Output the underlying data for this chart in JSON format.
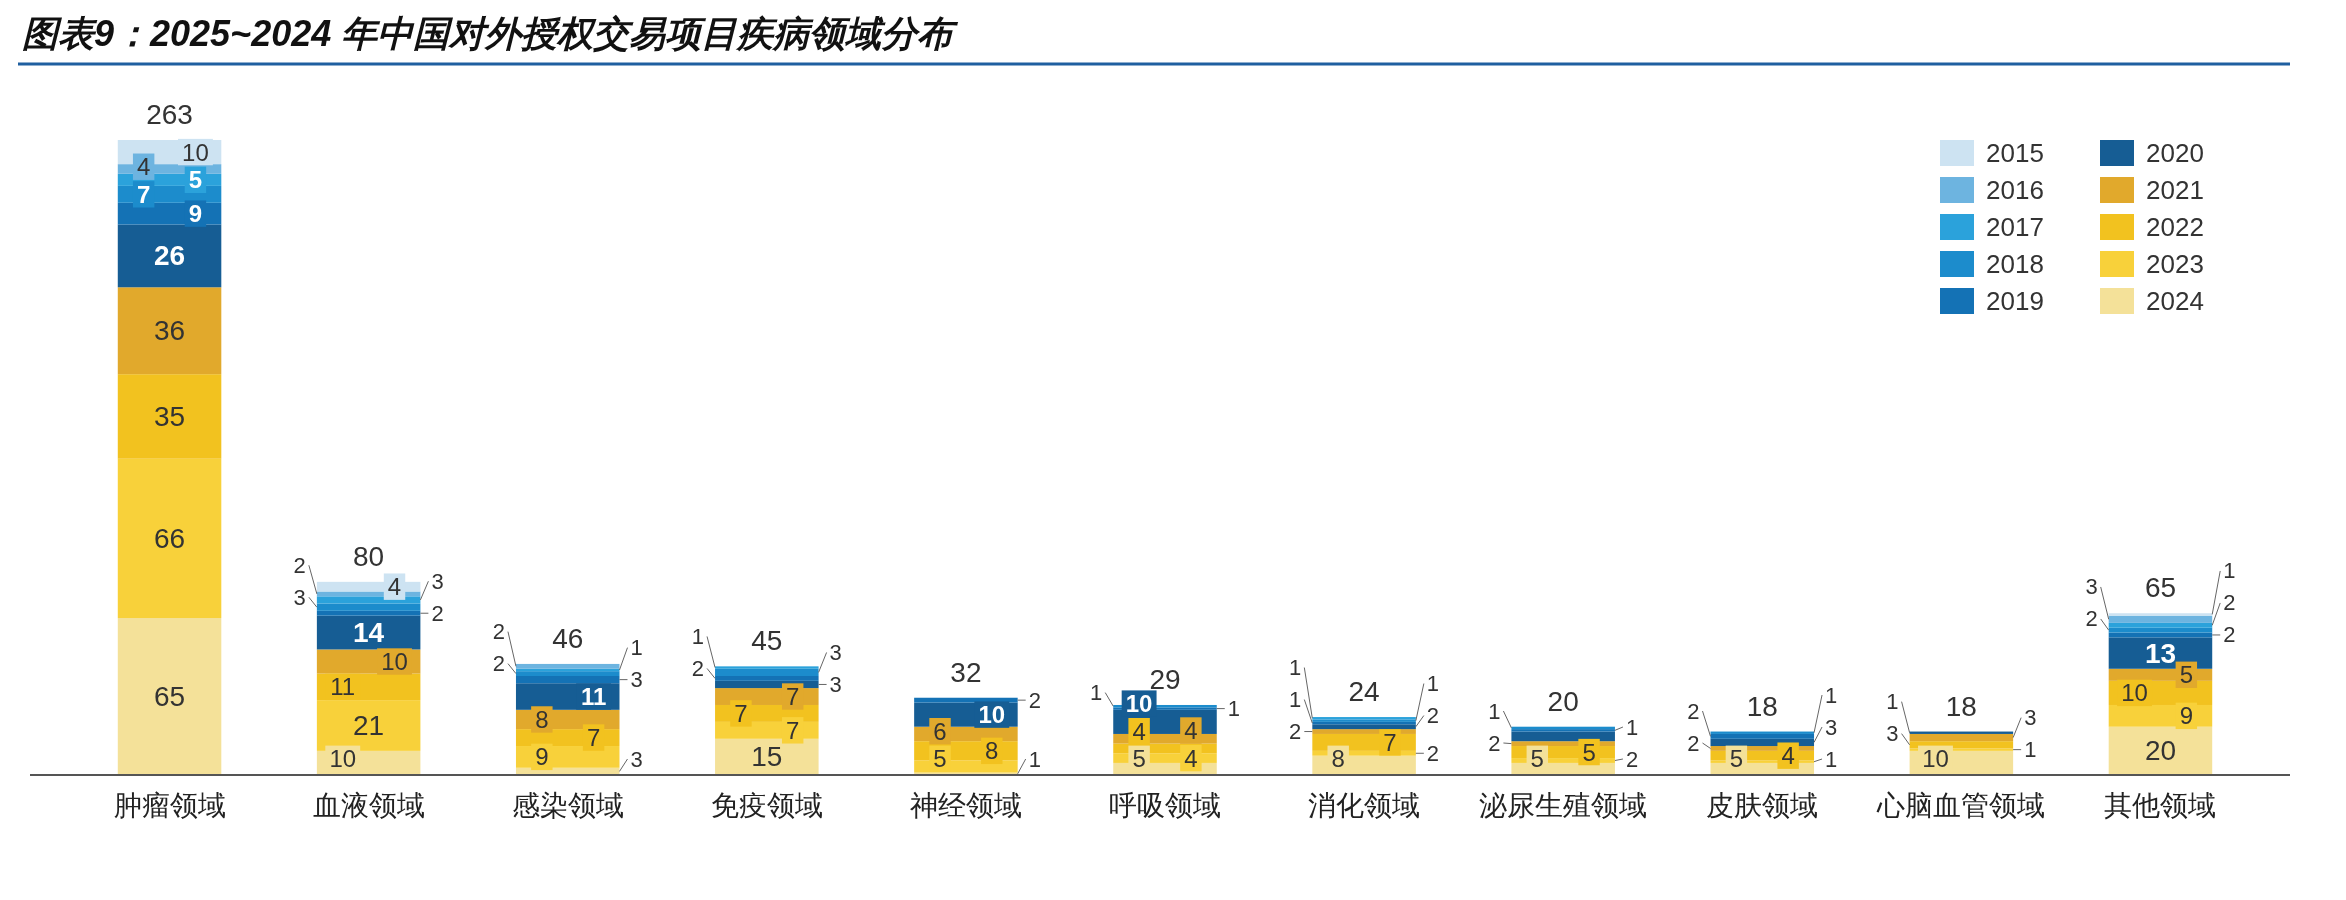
{
  "chart_data": {
    "type": "bar",
    "stacked": true,
    "title": "图表9：2025~2024 年中国对外授权交易项目疾病领域分布",
    "categories": [
      "肿瘤领域",
      "血液领域",
      "感染领域",
      "免疫领域",
      "神经领域",
      "呼吸领域",
      "消化领域",
      "泌尿生殖领域",
      "皮肤领域",
      "心脑血管领域",
      "其他领域"
    ],
    "series": [
      {
        "name": "2024",
        "color": "#f4e199",
        "values": [
          65,
          10,
          3,
          15,
          1,
          5,
          8,
          5,
          5,
          10,
          20
        ]
      },
      {
        "name": "2023",
        "color": "#f8d13a",
        "values": [
          66,
          21,
          9,
          7,
          5,
          4,
          2,
          2,
          1,
          1,
          9
        ]
      },
      {
        "name": "2022",
        "color": "#f2c21f",
        "values": [
          35,
          11,
          7,
          7,
          8,
          4,
          7,
          5,
          4,
          3,
          10
        ]
      },
      {
        "name": "2021",
        "color": "#e1a92c",
        "values": [
          36,
          10,
          8,
          7,
          6,
          4,
          2,
          2,
          2,
          3,
          5
        ]
      },
      {
        "name": "2020",
        "color": "#165d94",
        "values": [
          26,
          14,
          11,
          3,
          10,
          10,
          2,
          4,
          3,
          1,
          13
        ],
        "value_labels": [
          "26",
          "14",
          "11",
          "3",
          "10",
          "10",
          "2",
          null,
          "3",
          "1",
          "13"
        ]
      },
      {
        "name": "2019",
        "color": "#1472b5",
        "values": [
          9,
          2,
          3,
          2,
          2,
          1,
          1,
          1,
          2,
          null,
          2
        ]
      },
      {
        "name": "2018",
        "color": "#1c8ccc",
        "values": [
          7,
          3,
          2,
          3,
          null,
          1,
          1,
          1,
          1,
          null,
          2
        ]
      },
      {
        "name": "2017",
        "color": "#2ba2db",
        "values": [
          5,
          3,
          1,
          1,
          null,
          null,
          1,
          null,
          null,
          null,
          2
        ]
      },
      {
        "name": "2016",
        "color": "#6db4e0",
        "values": [
          4,
          2,
          2,
          null,
          null,
          null,
          null,
          null,
          null,
          null,
          3
        ]
      },
      {
        "name": "2015",
        "color": "#cde3f2",
        "values": [
          10,
          4,
          null,
          null,
          null,
          null,
          null,
          null,
          null,
          null,
          1
        ]
      }
    ],
    "data_labels": true,
    "totals": [
      "263",
      "80",
      "46",
      "45",
      "32",
      "29",
      "24",
      "20",
      "18",
      "18",
      "65"
    ],
    "legend": "top right"
  }
}
